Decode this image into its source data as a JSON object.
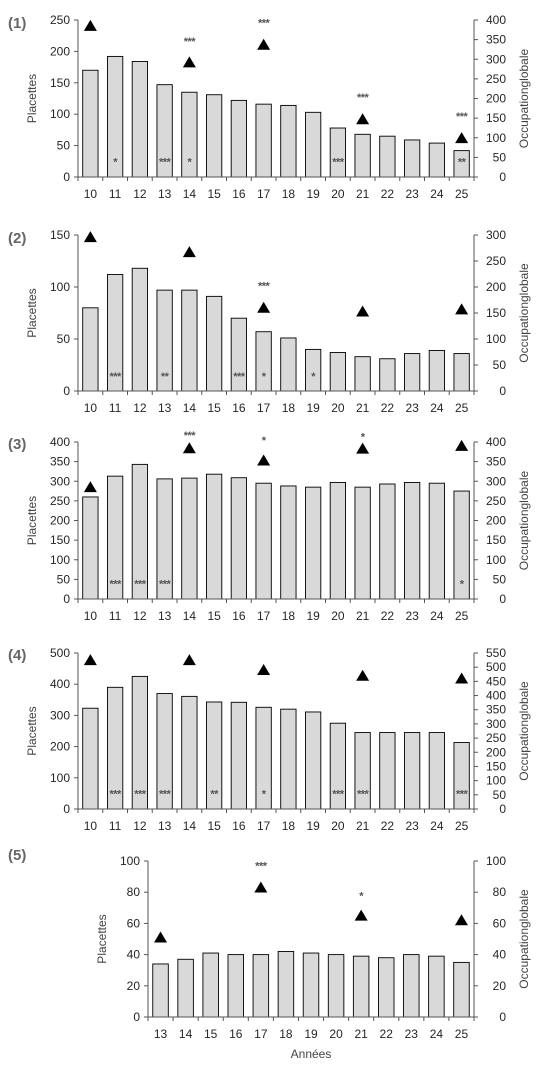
{
  "chart_data": [
    {
      "panel_label": "(1)",
      "type": "bar",
      "categories": [
        "10",
        "11",
        "12",
        "13",
        "14",
        "15",
        "16",
        "17",
        "18",
        "19",
        "20",
        "21",
        "22",
        "23",
        "24",
        "25"
      ],
      "series": [
        {
          "axis": "left",
          "values": [
            170,
            192,
            184,
            147,
            135,
            131,
            122,
            116,
            114,
            103,
            78,
            68,
            65,
            59,
            54,
            42
          ]
        },
        {
          "kind": "triangle",
          "axis": "right",
          "points": [
            {
              "x": "10",
              "y": 385
            },
            {
              "x": "14",
              "y": 292
            },
            {
              "x": "17",
              "y": 337
            },
            {
              "x": "21",
              "y": 147
            },
            {
              "x": "25",
              "y": 99
            }
          ]
        }
      ],
      "significance": [
        {
          "x": "11",
          "y": 40,
          "marks": "*"
        },
        {
          "x": "13",
          "y": 40,
          "marks": "***"
        },
        {
          "x": "14",
          "y": 40,
          "marks": "*"
        },
        {
          "x": "20",
          "y": 40,
          "marks": "***"
        },
        {
          "x": "25",
          "y": 40,
          "marks": "**"
        },
        {
          "x": "14",
          "y": 347,
          "marks": "***"
        },
        {
          "x": "17",
          "y": 393,
          "marks": "***"
        },
        {
          "x": "21",
          "y": 204,
          "marks": "***"
        },
        {
          "x": "25",
          "y": 155,
          "marks": "***"
        }
      ],
      "ylabel": "Placettes",
      "y2label": "Occupationglobale",
      "ylim": [
        0,
        250
      ],
      "yticks": [
        0,
        50,
        100,
        150,
        200,
        250
      ],
      "y2lim": [
        0,
        400
      ],
      "y2ticks": [
        0,
        50,
        100,
        150,
        200,
        250,
        300,
        350,
        400
      ],
      "xlabel": ""
    },
    {
      "panel_label": "(2)",
      "type": "bar",
      "categories": [
        "10",
        "11",
        "12",
        "13",
        "14",
        "15",
        "16",
        "17",
        "18",
        "19",
        "20",
        "21",
        "22",
        "23",
        "24",
        "25"
      ],
      "series": [
        {
          "axis": "left",
          "values": [
            80,
            112,
            118,
            97,
            97,
            91,
            70,
            57,
            51,
            40,
            37,
            33,
            31,
            36,
            39,
            36
          ]
        },
        {
          "kind": "triangle",
          "axis": "right",
          "points": [
            {
              "x": "10",
              "y": 296
            },
            {
              "x": "14",
              "y": 267
            },
            {
              "x": "17",
              "y": 160
            },
            {
              "x": "21",
              "y": 153
            },
            {
              "x": "25",
              "y": 157
            }
          ]
        }
      ],
      "significance": [
        {
          "x": "11",
          "y": 29,
          "marks": "***"
        },
        {
          "x": "13",
          "y": 29,
          "marks": "**"
        },
        {
          "x": "16",
          "y": 29,
          "marks": "***"
        },
        {
          "x": "17",
          "y": 29,
          "marks": "*"
        },
        {
          "x": "19",
          "y": 29,
          "marks": "*"
        },
        {
          "x": "17",
          "y": 203,
          "marks": "***"
        }
      ],
      "ylabel": "Placettes",
      "y2label": "Occupationglobale",
      "ylim": [
        0,
        150
      ],
      "yticks": [
        0,
        50,
        100,
        150
      ],
      "y2lim": [
        0,
        300
      ],
      "y2ticks": [
        0,
        50,
        100,
        150,
        200,
        250,
        300
      ],
      "xlabel": ""
    },
    {
      "panel_label": "(3)",
      "type": "bar",
      "categories": [
        "10",
        "11",
        "12",
        "13",
        "14",
        "15",
        "16",
        "17",
        "18",
        "19",
        "20",
        "21",
        "22",
        "23",
        "24",
        "25"
      ],
      "series": [
        {
          "axis": "left",
          "values": [
            260,
            313,
            343,
            306,
            308,
            318,
            309,
            295,
            288,
            285,
            297,
            285,
            293,
            297,
            295,
            275
          ]
        },
        {
          "kind": "triangle",
          "axis": "right",
          "points": [
            {
              "x": "10",
              "y": 285
            },
            {
              "x": "14",
              "y": 384
            },
            {
              "x": "17",
              "y": 353
            },
            {
              "x": "21",
              "y": 383
            },
            {
              "x": "25",
              "y": 390
            }
          ]
        }
      ],
      "significance": [
        {
          "x": "11",
          "y": 40,
          "marks": "***"
        },
        {
          "x": "12",
          "y": 40,
          "marks": "***"
        },
        {
          "x": "13",
          "y": 40,
          "marks": "***"
        },
        {
          "x": "25",
          "y": 40,
          "marks": "*"
        },
        {
          "x": "14",
          "y": 418,
          "marks": "***"
        },
        {
          "x": "17",
          "y": 405,
          "marks": "*"
        },
        {
          "x": "21",
          "y": 414,
          "marks": "*"
        }
      ],
      "ylabel": "Placettes",
      "y2label": "Occupationglobale",
      "ylim": [
        0,
        400
      ],
      "yticks": [
        0,
        50,
        100,
        150,
        200,
        250,
        300,
        350,
        400
      ],
      "y2lim": [
        0,
        400
      ],
      "y2ticks": [
        0,
        50,
        100,
        150,
        200,
        250,
        300,
        350,
        400
      ],
      "xlabel": ""
    },
    {
      "panel_label": "(4)",
      "type": "bar",
      "categories": [
        "10",
        "11",
        "12",
        "13",
        "14",
        "15",
        "16",
        "17",
        "18",
        "19",
        "20",
        "21",
        "22",
        "23",
        "24",
        "25"
      ],
      "series": [
        {
          "axis": "left",
          "values": [
            323,
            390,
            425,
            370,
            361,
            343,
            342,
            326,
            320,
            311,
            275,
            245,
            245,
            245,
            245,
            213
          ]
        },
        {
          "kind": "triangle",
          "axis": "right",
          "points": [
            {
              "x": "10",
              "y": 525
            },
            {
              "x": "14",
              "y": 525
            },
            {
              "x": "17",
              "y": 490
            },
            {
              "x": "21",
              "y": 470
            },
            {
              "x": "25",
              "y": 460
            }
          ]
        }
      ],
      "significance": [
        {
          "x": "11",
          "y": 55,
          "marks": "***"
        },
        {
          "x": "12",
          "y": 55,
          "marks": "***"
        },
        {
          "x": "13",
          "y": 55,
          "marks": "***"
        },
        {
          "x": "15",
          "y": 55,
          "marks": "**"
        },
        {
          "x": "17",
          "y": 55,
          "marks": "*"
        },
        {
          "x": "20",
          "y": 55,
          "marks": "***"
        },
        {
          "x": "21",
          "y": 55,
          "marks": "***"
        },
        {
          "x": "25",
          "y": 55,
          "marks": "***"
        }
      ],
      "ylabel": "Placettes",
      "y2label": "Occupationglobale",
      "ylim": [
        0,
        500
      ],
      "yticks": [
        0,
        100,
        200,
        300,
        400,
        500
      ],
      "y2lim": [
        0,
        550
      ],
      "y2ticks": [
        0,
        50,
        100,
        150,
        200,
        250,
        300,
        350,
        400,
        450,
        500,
        550
      ],
      "xlabel": ""
    },
    {
      "panel_label": "(5)",
      "type": "bar",
      "categories": [
        "13",
        "14",
        "15",
        "16",
        "17",
        "18",
        "19",
        "20",
        "21",
        "22",
        "23",
        "24",
        "25"
      ],
      "series": [
        {
          "axis": "left",
          "values": [
            34,
            37,
            41,
            40,
            40,
            42,
            41,
            40,
            39,
            38,
            40,
            39,
            35
          ]
        },
        {
          "kind": "triangle",
          "axis": "right",
          "points": [
            {
              "x": "13",
              "y": 51
            },
            {
              "x": "17",
              "y": 83
            },
            {
              "x": "21",
              "y": 65
            },
            {
              "x": "25",
              "y": 62
            }
          ]
        }
      ],
      "significance": [
        {
          "x": "17",
          "y": 97,
          "marks": "***"
        },
        {
          "x": "21",
          "y": 78,
          "marks": "*"
        }
      ],
      "ylabel": "Placettes",
      "y2label": "Occupationglobale",
      "ylim": [
        0,
        100
      ],
      "yticks": [
        0,
        20,
        40,
        60,
        80,
        100
      ],
      "y2lim": [
        0,
        100
      ],
      "y2ticks": [
        0,
        20,
        40,
        60,
        80,
        100
      ],
      "xlabel": "Années"
    }
  ]
}
